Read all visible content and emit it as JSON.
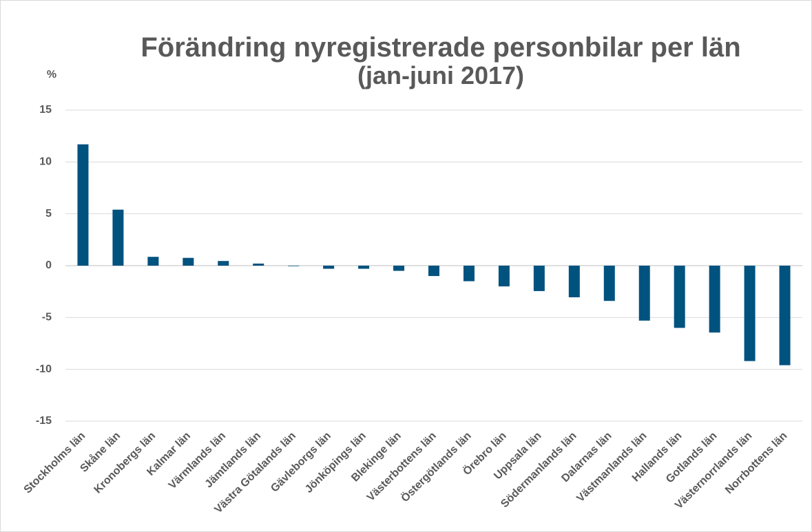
{
  "chart_data": {
    "type": "bar",
    "title": "Förändring nyregistrerade personbilar per län",
    "subtitle": "(jan-juni 2017)",
    "y_label": "%",
    "categories": [
      "Stockholms län",
      "Skåne län",
      "Kronobergs län",
      "Kalmar län",
      "Värmlands län",
      "Jämtlands län",
      "Västra Götalands län",
      "Gävleborgs län",
      "Jönköpings län",
      "Blekinge län",
      "Västerbottens län",
      "Östergötlands län",
      "Örebro län",
      "Uppsala län",
      "Södermanlands län",
      "Dalarnas län",
      "Västmanlands län",
      "Hallands län",
      "Gotlands län",
      "Västernorrlands län",
      "Norrbottens län"
    ],
    "values": [
      11.7,
      5.4,
      0.85,
      0.75,
      0.45,
      0.2,
      -0.05,
      -0.3,
      -0.3,
      -0.5,
      -1.0,
      -1.5,
      -2.0,
      -2.45,
      -3.05,
      -3.4,
      -5.3,
      -6.0,
      -6.45,
      -9.2,
      -9.6
    ],
    "color": "#00527f",
    "ylim": [
      -15,
      15
    ],
    "yticks": [
      15,
      10,
      5,
      0,
      -5,
      -10,
      -15
    ],
    "grid": true
  }
}
